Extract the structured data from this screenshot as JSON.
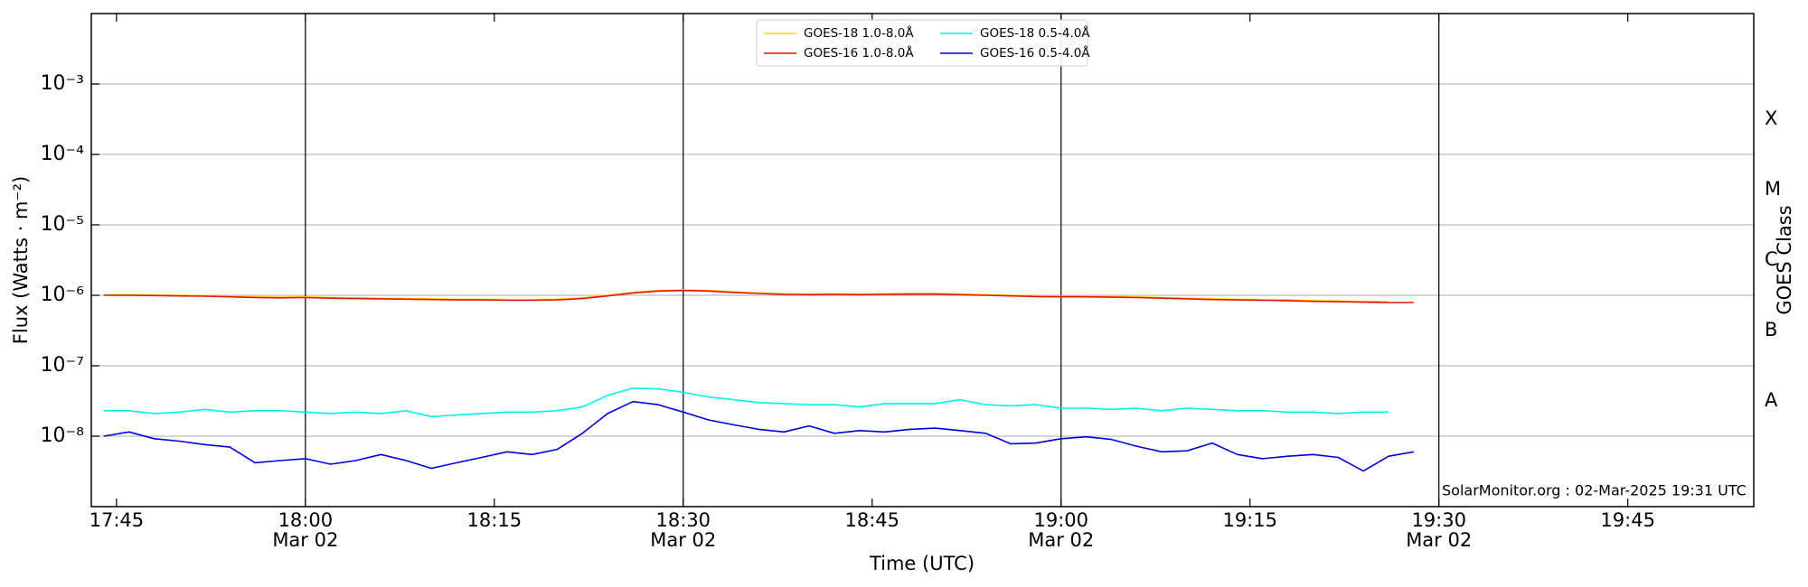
{
  "chart_data": {
    "type": "line",
    "xlabel": "Time (UTC)",
    "ylabel": "Flux (Watts · m⁻²)",
    "y2label": "GOES Class",
    "annotation": "SolarMonitor.org : 02-Mar-2025 19:31 UTC",
    "log_y": true,
    "grid": true,
    "legend": "upper center",
    "xlim": [
      "17:43",
      "19:55"
    ],
    "xticks": [
      "17:45",
      "18:00",
      "18:15",
      "18:30",
      "18:45",
      "19:00",
      "19:15",
      "19:30",
      "19:45"
    ],
    "date_ticks": [
      {
        "value": "18:00",
        "label": "Mar 02"
      },
      {
        "value": "18:30",
        "label": "Mar 02"
      },
      {
        "value": "19:00",
        "label": "Mar 02"
      },
      {
        "value": "19:30",
        "label": "Mar 02"
      }
    ],
    "vlines": [
      "18:00",
      "18:30",
      "19:00",
      "19:30"
    ],
    "ylim": [
      1e-09,
      0.01
    ],
    "yticks": [
      {
        "value": 1e-08,
        "label": "10⁻⁸"
      },
      {
        "value": 1e-07,
        "label": "10⁻⁷"
      },
      {
        "value": 1e-06,
        "label": "10⁻⁶"
      },
      {
        "value": 1e-05,
        "label": "10⁻⁵"
      },
      {
        "value": 0.0001,
        "label": "10⁻⁴"
      },
      {
        "value": 0.001,
        "label": "10⁻³"
      }
    ],
    "y2lim": [
      1e-09,
      0.01
    ],
    "y2ticks": [
      {
        "value": 3.16e-08,
        "label": "A"
      },
      {
        "value": 3.16e-07,
        "label": "B"
      },
      {
        "value": 3.16e-06,
        "label": "C"
      },
      {
        "value": 3.16e-05,
        "label": "M"
      },
      {
        "value": 0.000316,
        "label": "X"
      }
    ],
    "x": [
      "17:44",
      "17:46",
      "17:48",
      "17:50",
      "17:52",
      "17:54",
      "17:56",
      "17:58",
      "18:00",
      "18:02",
      "18:04",
      "18:06",
      "18:08",
      "18:10",
      "18:12",
      "18:14",
      "18:16",
      "18:18",
      "18:20",
      "18:22",
      "18:24",
      "18:26",
      "18:28",
      "18:30",
      "18:32",
      "18:34",
      "18:36",
      "18:38",
      "18:40",
      "18:42",
      "18:44",
      "18:46",
      "18:48",
      "18:50",
      "18:52",
      "18:54",
      "18:56",
      "18:58",
      "19:00",
      "19:02",
      "19:04",
      "19:06",
      "19:08",
      "19:10",
      "19:12",
      "19:14",
      "19:16",
      "19:18",
      "19:20",
      "19:22",
      "19:24",
      "19:26",
      "19:28"
    ],
    "series": [
      {
        "name": "GOES-18 1.0-8.0Å",
        "color": "#ffd700",
        "values": [
          1.02e-06,
          1.02e-06,
          1.01e-06,
          1e-06,
          9.9e-07,
          9.7e-07,
          9.5e-07,
          9.4e-07,
          9.5e-07,
          9.3e-07,
          9.2e-07,
          9.1e-07,
          9e-07,
          8.9e-07,
          8.8e-07,
          8.8e-07,
          8.7e-07,
          8.7e-07,
          8.8e-07,
          9.2e-07,
          1e-06,
          1.1e-06,
          1.17e-06,
          1.19e-06,
          1.17e-06,
          1.12e-06,
          1.08e-06,
          1.05e-06,
          1.04e-06,
          1.05e-06,
          1.04e-06,
          1.05e-06,
          1.06e-06,
          1.06e-06,
          1.04e-06,
          1.02e-06,
          1e-06,
          9.8e-07,
          9.7e-07,
          9.7e-07,
          9.6e-07,
          9.5e-07,
          9.3e-07,
          9.1e-07,
          8.9e-07,
          8.8e-07,
          8.7e-07,
          8.6e-07,
          8.4e-07,
          8.3e-07,
          8.2e-07,
          8.1e-07,
          null
        ]
      },
      {
        "name": "GOES-16 1.0-8.0Å",
        "color": "#e8150c",
        "values": [
          1e-06,
          1e-06,
          9.9e-07,
          9.8e-07,
          9.7e-07,
          9.5e-07,
          9.3e-07,
          9.2e-07,
          9.3e-07,
          9.1e-07,
          9e-07,
          8.9e-07,
          8.8e-07,
          8.7e-07,
          8.6e-07,
          8.6e-07,
          8.5e-07,
          8.5e-07,
          8.6e-07,
          9e-07,
          9.8e-07,
          1.08e-06,
          1.15e-06,
          1.17e-06,
          1.15e-06,
          1.1e-06,
          1.06e-06,
          1.03e-06,
          1.02e-06,
          1.03e-06,
          1.02e-06,
          1.03e-06,
          1.04e-06,
          1.04e-06,
          1.02e-06,
          1e-06,
          9.8e-07,
          9.6e-07,
          9.5e-07,
          9.5e-07,
          9.4e-07,
          9.3e-07,
          9.1e-07,
          8.9e-07,
          8.7e-07,
          8.6e-07,
          8.5e-07,
          8.4e-07,
          8.2e-07,
          8.1e-07,
          8e-07,
          7.9e-07,
          7.9e-07
        ]
      },
      {
        "name": "GOES-18 0.5-4.0Å",
        "color": "#00f0f0",
        "values": [
          2.3e-08,
          2.3e-08,
          2.1e-08,
          2.2e-08,
          2.4e-08,
          2.2e-08,
          2.3e-08,
          2.3e-08,
          2.2e-08,
          2.1e-08,
          2.2e-08,
          2.1e-08,
          2.3e-08,
          1.9e-08,
          2e-08,
          2.1e-08,
          2.2e-08,
          2.2e-08,
          2.3e-08,
          2.6e-08,
          3.8e-08,
          4.8e-08,
          4.7e-08,
          4.2e-08,
          3.6e-08,
          3.3e-08,
          3e-08,
          2.9e-08,
          2.8e-08,
          2.8e-08,
          2.6e-08,
          2.9e-08,
          2.9e-08,
          2.9e-08,
          3.3e-08,
          2.8e-08,
          2.7e-08,
          2.8e-08,
          2.5e-08,
          2.5e-08,
          2.4e-08,
          2.5e-08,
          2.3e-08,
          2.5e-08,
          2.4e-08,
          2.3e-08,
          2.3e-08,
          2.2e-08,
          2.2e-08,
          2.1e-08,
          2.2e-08,
          2.2e-08,
          null
        ]
      },
      {
        "name": "GOES-16 0.5-4.0Å",
        "color": "#0000dd",
        "values": [
          1e-08,
          1.15e-08,
          9.2e-09,
          8.5e-09,
          7.6e-09,
          7e-09,
          4.2e-09,
          4.5e-09,
          4.8e-09,
          4e-09,
          4.5e-09,
          5.5e-09,
          4.5e-09,
          3.5e-09,
          4.2e-09,
          5e-09,
          6e-09,
          5.5e-09,
          6.5e-09,
          1.1e-08,
          2.1e-08,
          3.1e-08,
          2.8e-08,
          2.2e-08,
          1.7e-08,
          1.45e-08,
          1.25e-08,
          1.15e-08,
          1.4e-08,
          1.1e-08,
          1.2e-08,
          1.15e-08,
          1.25e-08,
          1.3e-08,
          1.2e-08,
          1.1e-08,
          7.8e-09,
          8e-09,
          9.2e-09,
          9.8e-09,
          9e-09,
          7.2e-09,
          6e-09,
          6.2e-09,
          8e-09,
          5.5e-09,
          4.8e-09,
          5.2e-09,
          5.5e-09,
          5e-09,
          3.2e-09,
          5.2e-09,
          6e-09
        ]
      }
    ]
  }
}
